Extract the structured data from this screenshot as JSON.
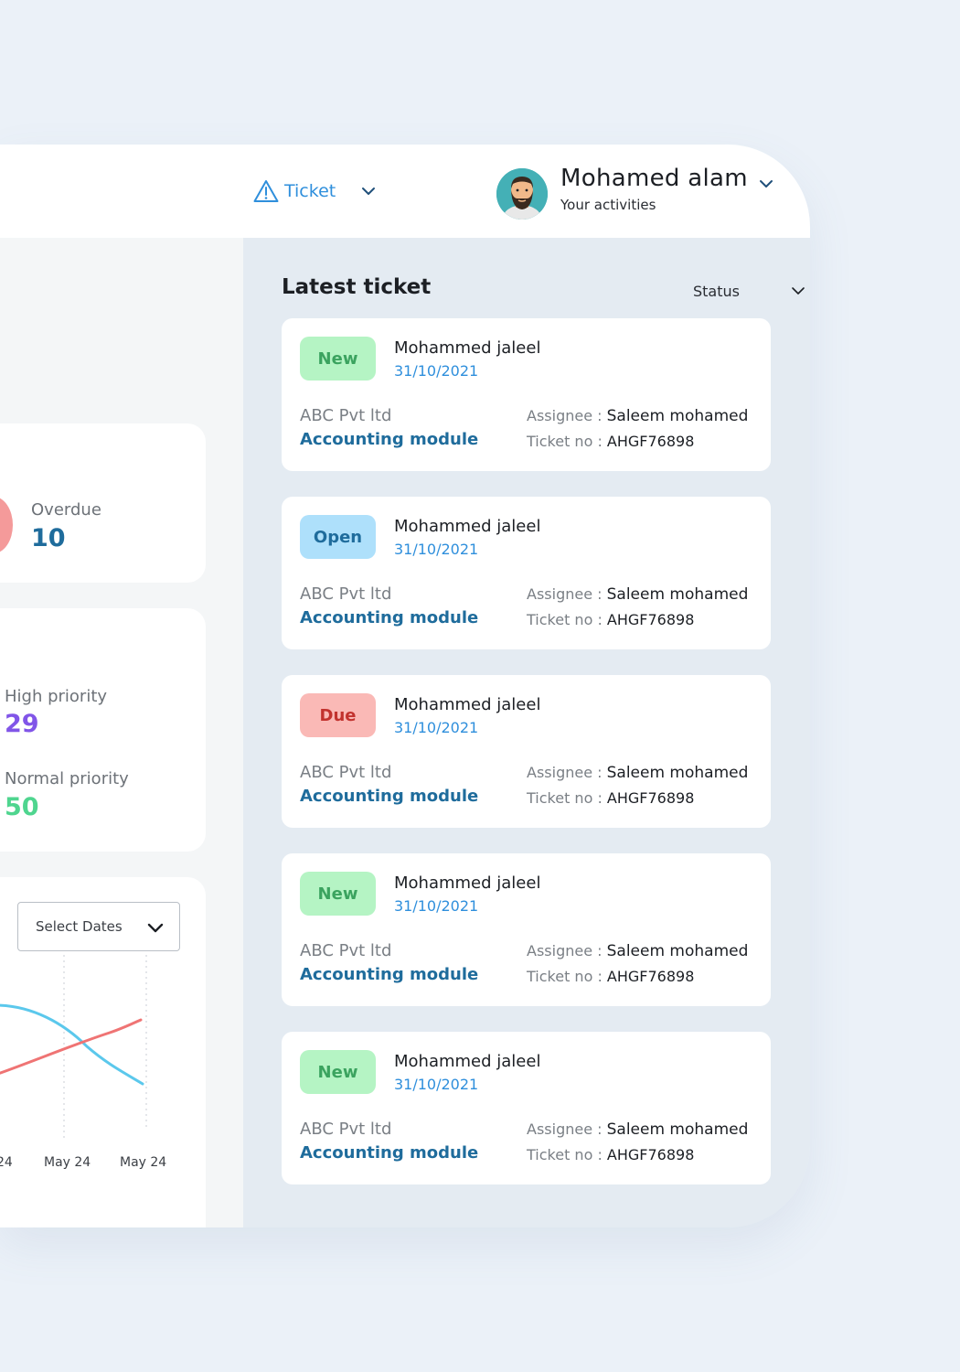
{
  "header": {
    "nav_label": "Ticket",
    "nav_icon": "warning-triangle-icon",
    "user_name": "Mohamed alam",
    "user_subtitle": "Your activities"
  },
  "stats": {
    "overdue": {
      "label": "Overdue",
      "value": "10"
    },
    "high_priority": {
      "label": "High priority",
      "value": "29"
    },
    "normal_priority": {
      "label": "Normal priority",
      "value": "50"
    }
  },
  "chart": {
    "select_label": "Select Dates",
    "x_ticks": [
      "24",
      "May 24",
      "May 24"
    ],
    "colors": {
      "series_a": "#5bc8ec",
      "series_b": "#ef7474"
    }
  },
  "tickets_section": {
    "title": "Latest ticket",
    "filter_label": "Status",
    "assignee_prefix": "Assignee : ",
    "ticketno_prefix": "Ticket no : ",
    "tickets": [
      {
        "status": "New",
        "name": "Mohammed jaleel",
        "date": "31/10/2021",
        "company": "ABC Pvt ltd",
        "module": "Accounting module",
        "assignee": "Saleem mohamed",
        "ticket_no": "AHGF76898"
      },
      {
        "status": "Open",
        "name": "Mohammed jaleel",
        "date": "31/10/2021",
        "company": "ABC Pvt ltd",
        "module": "Accounting module",
        "assignee": "Saleem mohamed",
        "ticket_no": "AHGF76898"
      },
      {
        "status": "Due",
        "name": "Mohammed jaleel",
        "date": "31/10/2021",
        "company": "ABC Pvt ltd",
        "module": "Accounting module",
        "assignee": "Saleem mohamed",
        "ticket_no": "AHGF76898"
      },
      {
        "status": "New",
        "name": "Mohammed jaleel",
        "date": "31/10/2021",
        "company": "ABC Pvt ltd",
        "module": "Accounting module",
        "assignee": "Saleem mohamed",
        "ticket_no": "AHGF76898"
      },
      {
        "status": "New",
        "name": "Mohammed jaleel",
        "date": "31/10/2021",
        "company": "ABC Pvt ltd",
        "module": "Accounting module",
        "assignee": "Saleem mohamed",
        "ticket_no": "AHGF76898"
      }
    ]
  }
}
